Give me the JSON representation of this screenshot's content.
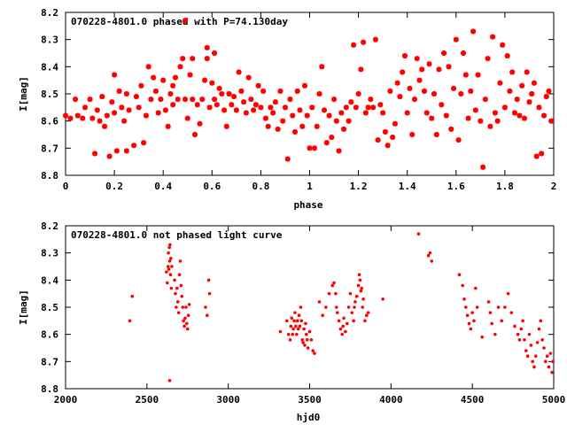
{
  "chart_data": [
    {
      "type": "scatter",
      "title": "070228-4801.0 phased with P=74.130day",
      "xlabel": "phase",
      "ylabel": "I[mag]",
      "xlim": [
        0,
        2
      ],
      "ylim": [
        8.2,
        8.8
      ],
      "y_inverted": true,
      "xticks": [
        "0",
        "0.2",
        "0.4",
        "0.6",
        "0.8",
        "1",
        "1.2",
        "1.4",
        "1.6",
        "1.8",
        "2"
      ],
      "yticks": [
        "8.2",
        "8.3",
        "8.4",
        "8.5",
        "8.6",
        "8.7",
        "8.8"
      ],
      "marker_color": "#ff0000",
      "points": [
        [
          0.0,
          8.58
        ],
        [
          0.02,
          8.59
        ],
        [
          0.04,
          8.52
        ],
        [
          0.05,
          8.58
        ],
        [
          0.07,
          8.59
        ],
        [
          0.08,
          8.55
        ],
        [
          0.1,
          8.52
        ],
        [
          0.11,
          8.59
        ],
        [
          0.12,
          8.72
        ],
        [
          0.13,
          8.56
        ],
        [
          0.14,
          8.6
        ],
        [
          0.15,
          8.51
        ],
        [
          0.16,
          8.62
        ],
        [
          0.17,
          8.58
        ],
        [
          0.18,
          8.73
        ],
        [
          0.19,
          8.53
        ],
        [
          0.2,
          8.57
        ],
        [
          0.2,
          8.43
        ],
        [
          0.21,
          8.71
        ],
        [
          0.22,
          8.49
        ],
        [
          0.23,
          8.55
        ],
        [
          0.24,
          8.6
        ],
        [
          0.25,
          8.5
        ],
        [
          0.25,
          8.71
        ],
        [
          0.26,
          8.56
        ],
        [
          0.28,
          8.69
        ],
        [
          0.29,
          8.51
        ],
        [
          0.3,
          8.55
        ],
        [
          0.31,
          8.47
        ],
        [
          0.32,
          8.68
        ],
        [
          0.33,
          8.58
        ],
        [
          0.34,
          8.4
        ],
        [
          0.35,
          8.52
        ],
        [
          0.36,
          8.44
        ],
        [
          0.37,
          8.49
        ],
        [
          0.38,
          8.57
        ],
        [
          0.39,
          8.52
        ],
        [
          0.4,
          8.45
        ],
        [
          0.41,
          8.56
        ],
        [
          0.42,
          8.62
        ],
        [
          0.43,
          8.5
        ],
        [
          0.44,
          8.47
        ],
        [
          0.44,
          8.54
        ],
        [
          0.45,
          8.44
        ],
        [
          0.46,
          8.52
        ],
        [
          0.47,
          8.4
        ],
        [
          0.48,
          8.37
        ],
        [
          0.49,
          8.23
        ],
        [
          0.49,
          8.52
        ],
        [
          0.5,
          8.59
        ],
        [
          0.51,
          8.43
        ],
        [
          0.52,
          8.52
        ],
        [
          0.52,
          8.37
        ],
        [
          0.53,
          8.65
        ],
        [
          0.54,
          8.54
        ],
        [
          0.55,
          8.61
        ],
        [
          0.56,
          8.52
        ],
        [
          0.57,
          8.45
        ],
        [
          0.58,
          8.37
        ],
        [
          0.58,
          8.33
        ],
        [
          0.59,
          8.55
        ],
        [
          0.6,
          8.46
        ],
        [
          0.61,
          8.52
        ],
        [
          0.61,
          8.35
        ],
        [
          0.62,
          8.54
        ],
        [
          0.63,
          8.48
        ],
        [
          0.64,
          8.5
        ],
        [
          0.65,
          8.56
        ],
        [
          0.66,
          8.62
        ],
        [
          0.67,
          8.5
        ],
        [
          0.68,
          8.54
        ],
        [
          0.69,
          8.51
        ],
        [
          0.7,
          8.56
        ],
        [
          0.71,
          8.42
        ],
        [
          0.72,
          8.49
        ],
        [
          0.73,
          8.53
        ],
        [
          0.74,
          8.57
        ],
        [
          0.75,
          8.44
        ],
        [
          0.76,
          8.52
        ],
        [
          0.77,
          8.56
        ],
        [
          0.78,
          8.54
        ],
        [
          0.79,
          8.47
        ],
        [
          0.8,
          8.55
        ],
        [
          0.81,
          8.49
        ],
        [
          0.82,
          8.59
        ],
        [
          0.83,
          8.62
        ],
        [
          0.84,
          8.55
        ],
        [
          0.85,
          8.57
        ],
        [
          0.86,
          8.53
        ],
        [
          0.87,
          8.63
        ],
        [
          0.88,
          8.49
        ],
        [
          0.89,
          8.6
        ],
        [
          0.9,
          8.55
        ],
        [
          0.91,
          8.74
        ],
        [
          0.92,
          8.52
        ],
        [
          0.93,
          8.58
        ],
        [
          0.94,
          8.64
        ],
        [
          0.95,
          8.49
        ],
        [
          0.96,
          8.56
        ],
        [
          0.97,
          8.62
        ],
        [
          0.98,
          8.47
        ],
        [
          0.99,
          8.58
        ],
        [
          1.0,
          8.7
        ],
        [
          1.01,
          8.55
        ],
        [
          1.02,
          8.7
        ],
        [
          1.03,
          8.62
        ],
        [
          1.04,
          8.5
        ],
        [
          1.05,
          8.4
        ],
        [
          1.06,
          8.56
        ],
        [
          1.07,
          8.68
        ],
        [
          1.08,
          8.58
        ],
        [
          1.09,
          8.66
        ],
        [
          1.1,
          8.52
        ],
        [
          1.11,
          8.6
        ],
        [
          1.12,
          8.71
        ],
        [
          1.13,
          8.57
        ],
        [
          1.14,
          8.63
        ],
        [
          1.15,
          8.55
        ],
        [
          1.16,
          8.6
        ],
        [
          1.17,
          8.53
        ],
        [
          1.18,
          8.32
        ],
        [
          1.19,
          8.55
        ],
        [
          1.2,
          8.5
        ],
        [
          1.21,
          8.41
        ],
        [
          1.22,
          8.31
        ],
        [
          1.23,
          8.57
        ],
        [
          1.24,
          8.55
        ],
        [
          1.25,
          8.52
        ],
        [
          1.26,
          8.55
        ],
        [
          1.27,
          8.3
        ],
        [
          1.28,
          8.67
        ],
        [
          1.29,
          8.54
        ],
        [
          1.3,
          8.57
        ],
        [
          1.31,
          8.64
        ],
        [
          1.32,
          8.69
        ],
        [
          1.33,
          8.49
        ],
        [
          1.34,
          8.66
        ],
        [
          1.35,
          8.61
        ],
        [
          1.36,
          8.46
        ],
        [
          1.37,
          8.51
        ],
        [
          1.38,
          8.42
        ],
        [
          1.39,
          8.36
        ],
        [
          1.4,
          8.57
        ],
        [
          1.41,
          8.48
        ],
        [
          1.42,
          8.65
        ],
        [
          1.43,
          8.52
        ],
        [
          1.44,
          8.37
        ],
        [
          1.45,
          8.45
        ],
        [
          1.46,
          8.41
        ],
        [
          1.47,
          8.49
        ],
        [
          1.48,
          8.57
        ],
        [
          1.49,
          8.39
        ],
        [
          1.5,
          8.59
        ],
        [
          1.51,
          8.5
        ],
        [
          1.52,
          8.65
        ],
        [
          1.53,
          8.41
        ],
        [
          1.54,
          8.54
        ],
        [
          1.55,
          8.35
        ],
        [
          1.56,
          8.58
        ],
        [
          1.57,
          8.4
        ],
        [
          1.58,
          8.63
        ],
        [
          1.59,
          8.48
        ],
        [
          1.6,
          8.3
        ],
        [
          1.61,
          8.67
        ],
        [
          1.62,
          8.5
        ],
        [
          1.63,
          8.35
        ],
        [
          1.64,
          8.43
        ],
        [
          1.65,
          8.59
        ],
        [
          1.66,
          8.49
        ],
        [
          1.67,
          8.27
        ],
        [
          1.68,
          8.56
        ],
        [
          1.69,
          8.43
        ],
        [
          1.7,
          8.6
        ],
        [
          1.71,
          8.77
        ],
        [
          1.72,
          8.52
        ],
        [
          1.73,
          8.37
        ],
        [
          1.74,
          8.62
        ],
        [
          1.75,
          8.29
        ],
        [
          1.76,
          8.57
        ],
        [
          1.77,
          8.6
        ],
        [
          1.78,
          8.46
        ],
        [
          1.79,
          8.32
        ],
        [
          1.8,
          8.55
        ],
        [
          1.81,
          8.36
        ],
        [
          1.82,
          8.49
        ],
        [
          1.83,
          8.42
        ],
        [
          1.84,
          8.57
        ],
        [
          1.85,
          8.52
        ],
        [
          1.86,
          8.58
        ],
        [
          1.87,
          8.47
        ],
        [
          1.88,
          8.59
        ],
        [
          1.89,
          8.42
        ],
        [
          1.9,
          8.53
        ],
        [
          1.91,
          8.5
        ],
        [
          1.92,
          8.46
        ],
        [
          1.93,
          8.73
        ],
        [
          1.94,
          8.55
        ],
        [
          1.95,
          8.72
        ],
        [
          1.96,
          8.58
        ],
        [
          1.97,
          8.51
        ],
        [
          1.98,
          8.49
        ],
        [
          1.99,
          8.6
        ]
      ]
    },
    {
      "type": "scatter",
      "title": "070228-4801.0 not phased light curve",
      "xlabel": "hjd0",
      "ylabel": "I[mag]",
      "xlim": [
        2000,
        5000
      ],
      "ylim": [
        8.2,
        8.8
      ],
      "y_inverted": true,
      "xticks": [
        "2000",
        "2500",
        "3000",
        "3500",
        "4000",
        "4500",
        "5000"
      ],
      "yticks": [
        "8.2",
        "8.3",
        "8.4",
        "8.5",
        "8.6",
        "8.7",
        "8.8"
      ],
      "marker_color": "#ff0000",
      "points": [
        [
          2395,
          8.55
        ],
        [
          2410,
          8.46
        ],
        [
          2620,
          8.37
        ],
        [
          2625,
          8.41
        ],
        [
          2630,
          8.35
        ],
        [
          2632,
          8.3
        ],
        [
          2635,
          8.36
        ],
        [
          2638,
          8.28
        ],
        [
          2640,
          8.33
        ],
        [
          2642,
          8.27
        ],
        [
          2645,
          8.38
        ],
        [
          2647,
          8.32
        ],
        [
          2650,
          8.43
        ],
        [
          2653,
          8.35
        ],
        [
          2640,
          8.77
        ],
        [
          2670,
          8.4
        ],
        [
          2675,
          8.45
        ],
        [
          2680,
          8.5
        ],
        [
          2685,
          8.43
        ],
        [
          2690,
          8.48
        ],
        [
          2695,
          8.52
        ],
        [
          2700,
          8.38
        ],
        [
          2705,
          8.33
        ],
        [
          2710,
          8.42
        ],
        [
          2715,
          8.46
        ],
        [
          2720,
          8.5
        ],
        [
          2725,
          8.55
        ],
        [
          2730,
          8.57
        ],
        [
          2735,
          8.54
        ],
        [
          2740,
          8.5
        ],
        [
          2745,
          8.56
        ],
        [
          2750,
          8.58
        ],
        [
          2755,
          8.53
        ],
        [
          2760,
          8.49
        ],
        [
          2860,
          8.5
        ],
        [
          2870,
          8.53
        ],
        [
          2880,
          8.4
        ],
        [
          2885,
          8.45
        ],
        [
          3320,
          8.59
        ],
        [
          3360,
          8.55
        ],
        [
          3370,
          8.6
        ],
        [
          3380,
          8.62
        ],
        [
          3385,
          8.57
        ],
        [
          3390,
          8.54
        ],
        [
          3395,
          8.6
        ],
        [
          3400,
          8.58
        ],
        [
          3405,
          8.55
        ],
        [
          3410,
          8.52
        ],
        [
          3415,
          8.57
        ],
        [
          3420,
          8.6
        ],
        [
          3425,
          8.55
        ],
        [
          3430,
          8.58
        ],
        [
          3435,
          8.53
        ],
        [
          3440,
          8.57
        ],
        [
          3445,
          8.5
        ],
        [
          3450,
          8.55
        ],
        [
          3455,
          8.62
        ],
        [
          3460,
          8.63
        ],
        [
          3465,
          8.58
        ],
        [
          3470,
          8.64
        ],
        [
          3475,
          8.56
        ],
        [
          3480,
          8.6
        ],
        [
          3485,
          8.62
        ],
        [
          3490,
          8.65
        ],
        [
          3500,
          8.59
        ],
        [
          3510,
          8.62
        ],
        [
          3520,
          8.66
        ],
        [
          3530,
          8.67
        ],
        [
          3560,
          8.48
        ],
        [
          3580,
          8.53
        ],
        [
          3600,
          8.5
        ],
        [
          3620,
          8.45
        ],
        [
          3640,
          8.42
        ],
        [
          3650,
          8.41
        ],
        [
          3660,
          8.45
        ],
        [
          3665,
          8.5
        ],
        [
          3670,
          8.52
        ],
        [
          3680,
          8.55
        ],
        [
          3690,
          8.58
        ],
        [
          3700,
          8.6
        ],
        [
          3705,
          8.57
        ],
        [
          3710,
          8.54
        ],
        [
          3720,
          8.59
        ],
        [
          3730,
          8.56
        ],
        [
          3740,
          8.5
        ],
        [
          3750,
          8.45
        ],
        [
          3760,
          8.52
        ],
        [
          3770,
          8.55
        ],
        [
          3775,
          8.5
        ],
        [
          3780,
          8.48
        ],
        [
          3790,
          8.46
        ],
        [
          3800,
          8.42
        ],
        [
          3805,
          8.38
        ],
        [
          3810,
          8.4
        ],
        [
          3815,
          8.44
        ],
        [
          3820,
          8.43
        ],
        [
          3825,
          8.5
        ],
        [
          3830,
          8.47
        ],
        [
          3840,
          8.55
        ],
        [
          3850,
          8.53
        ],
        [
          3860,
          8.52
        ],
        [
          3950,
          8.47
        ],
        [
          4170,
          8.23
        ],
        [
          4230,
          8.31
        ],
        [
          4240,
          8.3
        ],
        [
          4250,
          8.33
        ],
        [
          4420,
          8.38
        ],
        [
          4440,
          8.42
        ],
        [
          4450,
          8.47
        ],
        [
          4460,
          8.5
        ],
        [
          4470,
          8.53
        ],
        [
          4480,
          8.56
        ],
        [
          4490,
          8.58
        ],
        [
          4500,
          8.52
        ],
        [
          4510,
          8.55
        ],
        [
          4520,
          8.43
        ],
        [
          4530,
          8.5
        ],
        [
          4560,
          8.61
        ],
        [
          4600,
          8.48
        ],
        [
          4610,
          8.52
        ],
        [
          4620,
          8.56
        ],
        [
          4640,
          8.6
        ],
        [
          4660,
          8.5
        ],
        [
          4680,
          8.55
        ],
        [
          4700,
          8.5
        ],
        [
          4720,
          8.45
        ],
        [
          4740,
          8.52
        ],
        [
          4760,
          8.57
        ],
        [
          4780,
          8.6
        ],
        [
          4790,
          8.62
        ],
        [
          4800,
          8.58
        ],
        [
          4810,
          8.55
        ],
        [
          4820,
          8.62
        ],
        [
          4830,
          8.66
        ],
        [
          4840,
          8.68
        ],
        [
          4850,
          8.6
        ],
        [
          4860,
          8.64
        ],
        [
          4870,
          8.7
        ],
        [
          4880,
          8.72
        ],
        [
          4890,
          8.68
        ],
        [
          4900,
          8.63
        ],
        [
          4910,
          8.58
        ],
        [
          4920,
          8.55
        ],
        [
          4930,
          8.62
        ],
        [
          4940,
          8.65
        ],
        [
          4950,
          8.7
        ],
        [
          4960,
          8.68
        ],
        [
          4970,
          8.72
        ],
        [
          4980,
          8.67
        ],
        [
          4990,
          8.74
        ],
        [
          4995,
          8.7
        ]
      ]
    }
  ]
}
